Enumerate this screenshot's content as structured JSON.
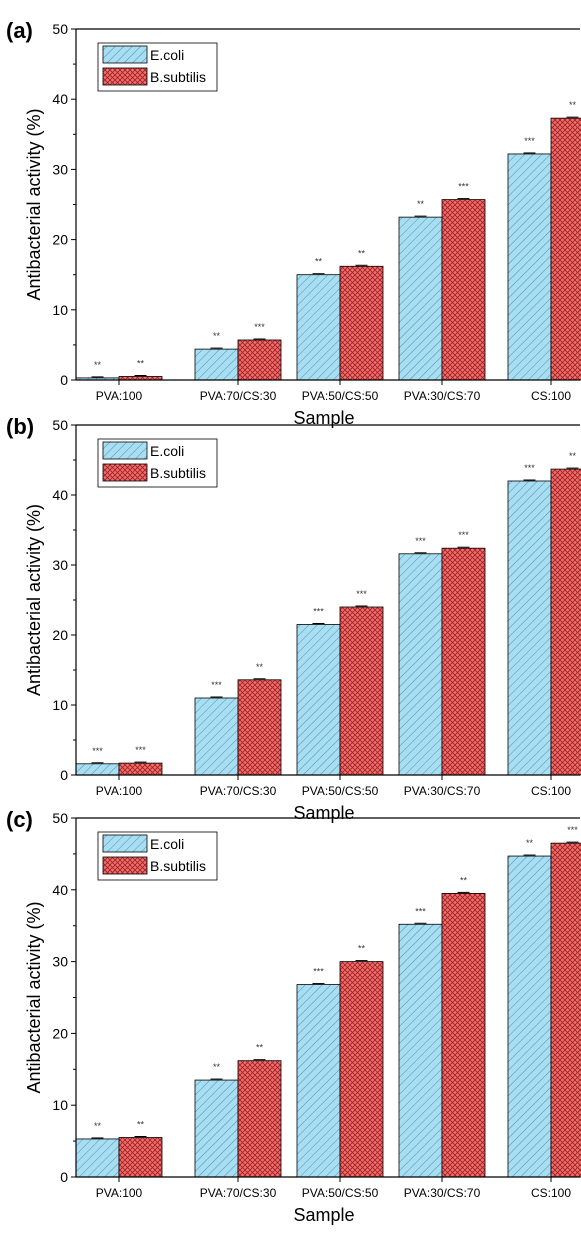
{
  "figure": {
    "colors": {
      "ecoli": "#a8def2",
      "bsubtilis": "#f26d6d",
      "axis": "#000000",
      "star": "#333333"
    }
  },
  "chart_data": [
    {
      "type": "bar",
      "panel_label": "(a)",
      "categories": [
        "PVA:100",
        "PVA:70/CS:30",
        "PVA:50/CS:50",
        "PVA:30/CS:70",
        "CS:100"
      ],
      "series": [
        {
          "name": "E.coli",
          "values": [
            0.3,
            4.4,
            15.0,
            23.2,
            32.2
          ],
          "significance": [
            "**",
            "**",
            "**",
            "**",
            "***"
          ]
        },
        {
          "name": "B.subtilis",
          "values": [
            0.5,
            5.7,
            16.2,
            25.7,
            37.3
          ],
          "significance": [
            "**",
            "***",
            "**",
            "***",
            "**"
          ]
        }
      ],
      "xlabel": "Sample",
      "ylabel": "Antibacterial activity (%)",
      "ylim": [
        0,
        50
      ],
      "yticks": [
        0,
        10,
        20,
        30,
        40,
        50
      ],
      "legend": "top-left",
      "grid": false
    },
    {
      "type": "bar",
      "panel_label": "(b)",
      "categories": [
        "PVA:100",
        "PVA:70/CS:30",
        "PVA:50/CS:50",
        "PVA:30/CS:70",
        "CS:100"
      ],
      "series": [
        {
          "name": "E.coli",
          "values": [
            1.6,
            11.0,
            21.5,
            31.6,
            42.0
          ],
          "significance": [
            "***",
            "***",
            "***",
            "***",
            "***"
          ]
        },
        {
          "name": "B.subtilis",
          "values": [
            1.7,
            13.6,
            24.0,
            32.4,
            43.7
          ],
          "significance": [
            "***",
            "**",
            "***",
            "***",
            "**"
          ]
        }
      ],
      "xlabel": "Sample",
      "ylabel": "Antibacterial activity (%)",
      "ylim": [
        0,
        50
      ],
      "yticks": [
        0,
        10,
        20,
        30,
        40,
        50
      ],
      "legend": "top-left",
      "grid": false
    },
    {
      "type": "bar",
      "panel_label": "(c)",
      "categories": [
        "PVA:100",
        "PVA:70/CS:30",
        "PVA:50/CS:50",
        "PVA:30/CS:70",
        "CS:100"
      ],
      "series": [
        {
          "name": "E.coli",
          "values": [
            5.3,
            13.5,
            26.8,
            35.2,
            44.7
          ],
          "significance": [
            "**",
            "**",
            "***",
            "***",
            "**"
          ]
        },
        {
          "name": "B.subtilis",
          "values": [
            5.5,
            16.2,
            30.0,
            39.5,
            46.5
          ],
          "significance": [
            "**",
            "**",
            "**",
            "**",
            "***"
          ]
        }
      ],
      "xlabel": "Sample",
      "ylabel": "Antibacterial activity (%)",
      "ylim": [
        0,
        50
      ],
      "yticks": [
        0,
        10,
        20,
        30,
        40,
        50
      ],
      "legend": "top-left",
      "grid": false
    }
  ]
}
